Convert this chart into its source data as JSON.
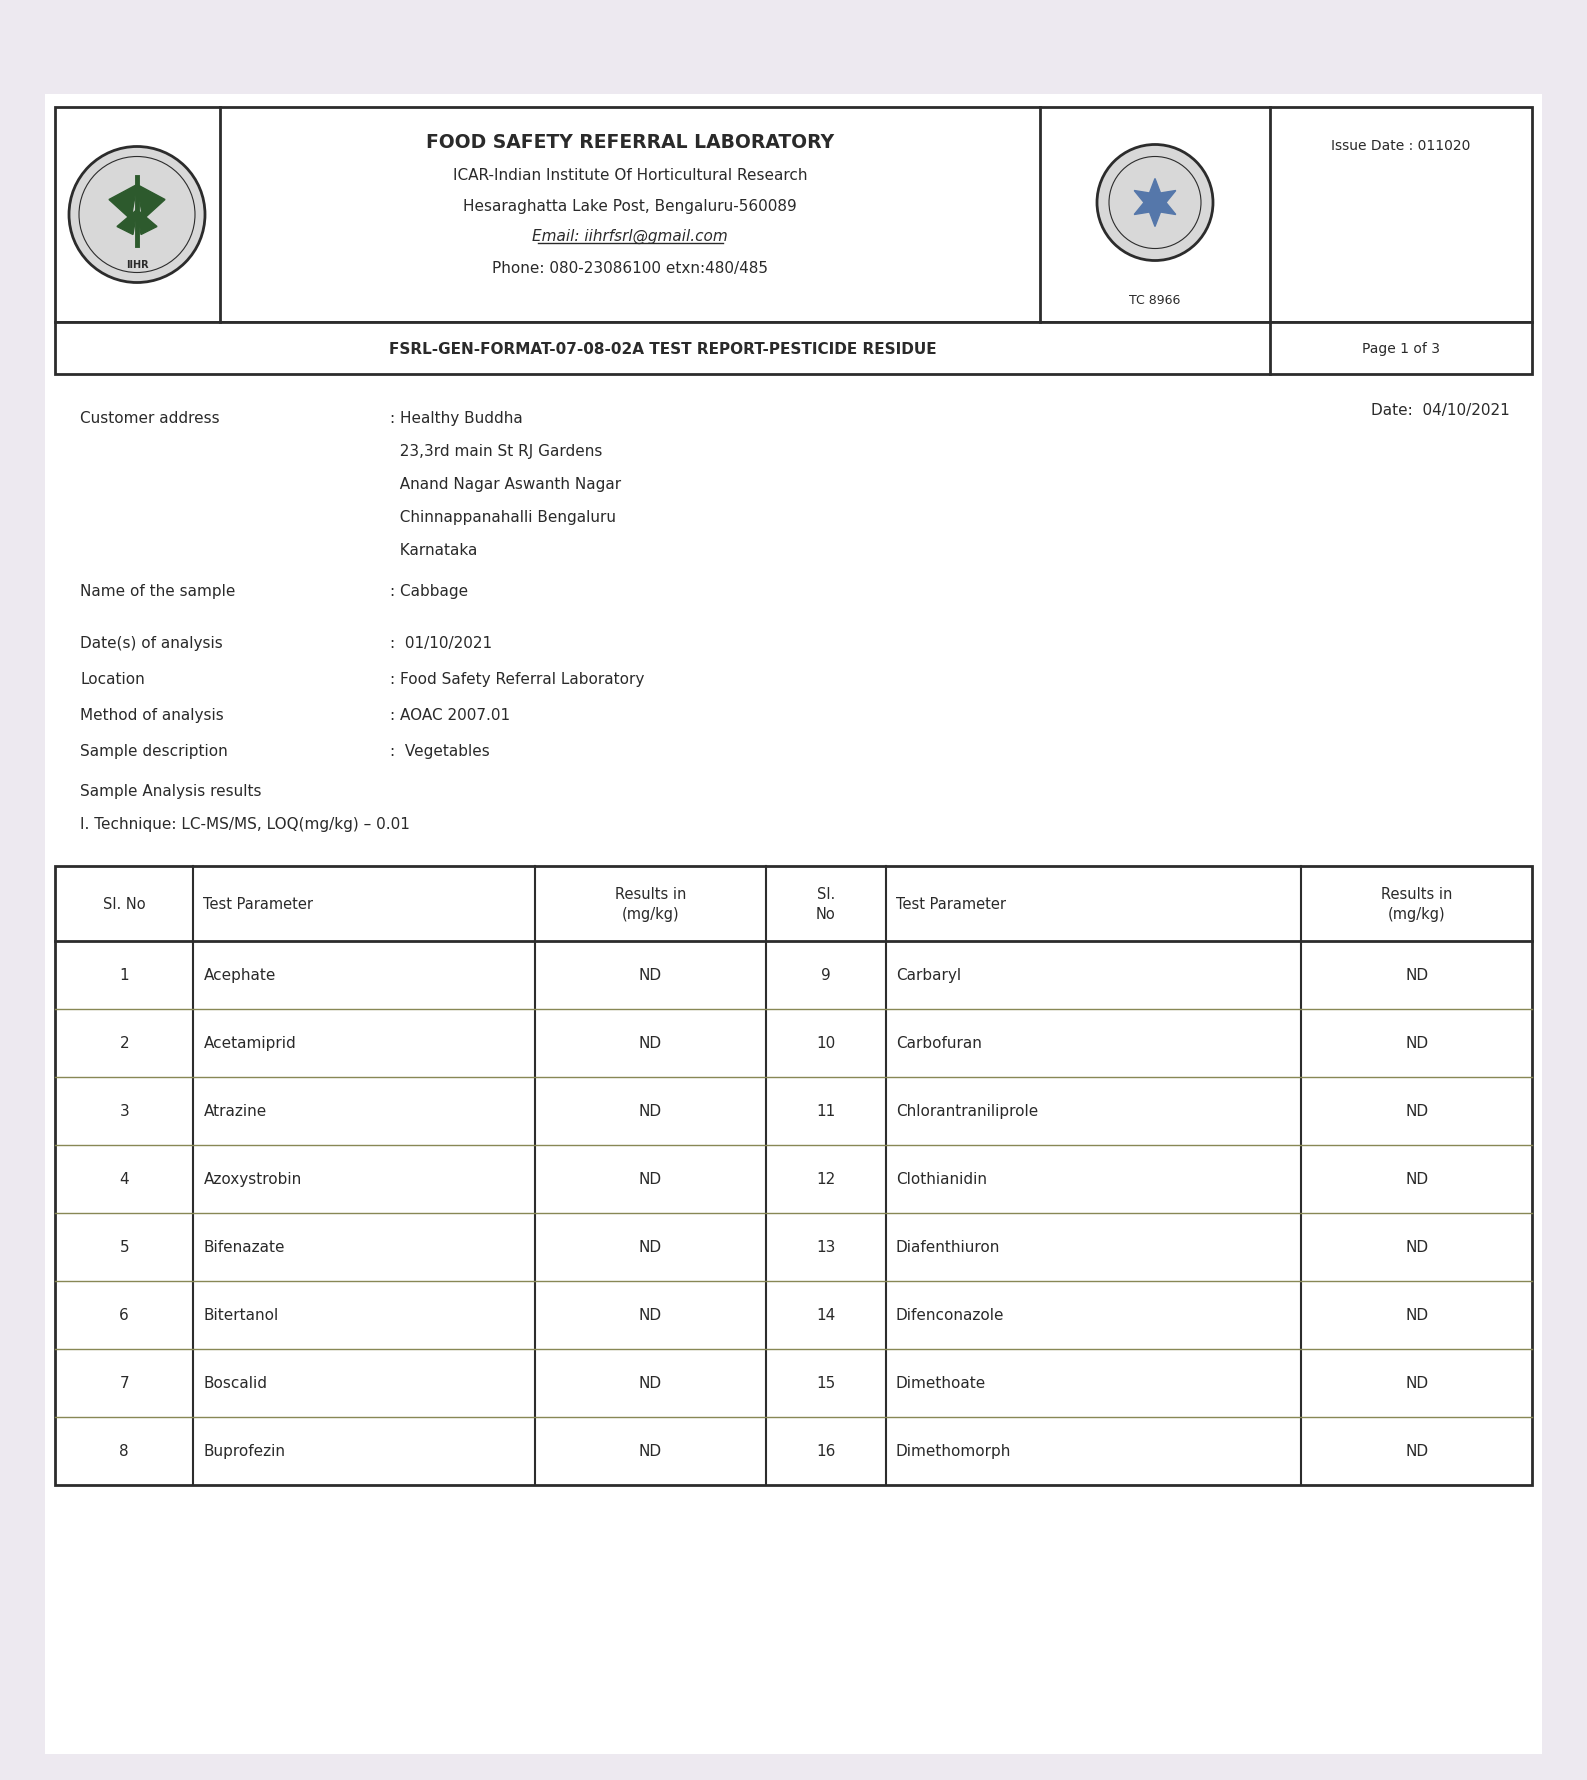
{
  "bg_color": "#ede9f0",
  "paper_color": "#ffffff",
  "border_color": "#2c2c2c",
  "header_title": "FOOD SAFETY REFERRAL LABORATORY",
  "header_line2": "ICAR-Indian Institute Of Horticultural Research",
  "header_line3": "Hesaraghatta Lake Post, Bengaluru-560089",
  "header_line4": "Email: iihrfsrl@gmail.com",
  "header_line5": "Phone: 080-23086100 etxn:480/485",
  "issue_date": "Issue Date : 011020",
  "tc_number": "TC 8966",
  "format_line": "FSRL-GEN-FORMAT-07-08-02A TEST REPORT-PESTICIDE RESIDUE",
  "page": "Page 1 of 3",
  "date_label": "Date:  04/10/2021",
  "customer_address_label": "Customer address",
  "customer_address_value": [
    ": Healthy Buddha",
    "  23,3rd main St RJ Gardens",
    "  Anand Nagar Aswanth Nagar",
    "  Chinnappanahalli Bengaluru",
    "  Karnataka"
  ],
  "sample_name_label": "Name of the sample",
  "sample_name_value": ": Cabbage",
  "analysis_date_label": "Date(s) of analysis",
  "analysis_date_value": ":  01/10/2021",
  "location_label": "Location",
  "location_value": ": Food Safety Referral Laboratory",
  "method_label": "Method of analysis",
  "method_value": ": AOAC 2007.01",
  "sample_desc_label": "Sample description",
  "sample_desc_value": ":  Vegetables",
  "analysis_results_label": "Sample Analysis results",
  "technique_label": "I. Technique: LC-MS/MS, LOQ(mg/kg) – 0.01",
  "table_headers": [
    "Sl. No",
    "Test Parameter",
    "Results in\n(mg/kg)",
    "Sl.\nNo",
    "Test Parameter",
    "Results in\n(mg/kg)"
  ],
  "table_rows": [
    [
      "1",
      "Acephate",
      "ND",
      "9",
      "Carbaryl",
      "ND"
    ],
    [
      "2",
      "Acetamiprid",
      "ND",
      "10",
      "Carbofuran",
      "ND"
    ],
    [
      "3",
      "Atrazine",
      "ND",
      "11",
      "Chlorantraniliprole",
      "ND"
    ],
    [
      "4",
      "Azoxystrobin",
      "ND",
      "12",
      "Clothianidin",
      "ND"
    ],
    [
      "5",
      "Bifenazate",
      "ND",
      "13",
      "Diafenthiuron",
      "ND"
    ],
    [
      "6",
      "Bitertanol",
      "ND",
      "14",
      "Difenconazole",
      "ND"
    ],
    [
      "7",
      "Boscalid",
      "ND",
      "15",
      "Dimethoate",
      "ND"
    ],
    [
      "8",
      "Buprofezin",
      "ND",
      "16",
      "Dimethomorph",
      "ND"
    ]
  ],
  "text_color": "#2a2a2a",
  "table_line_color": "#888855"
}
